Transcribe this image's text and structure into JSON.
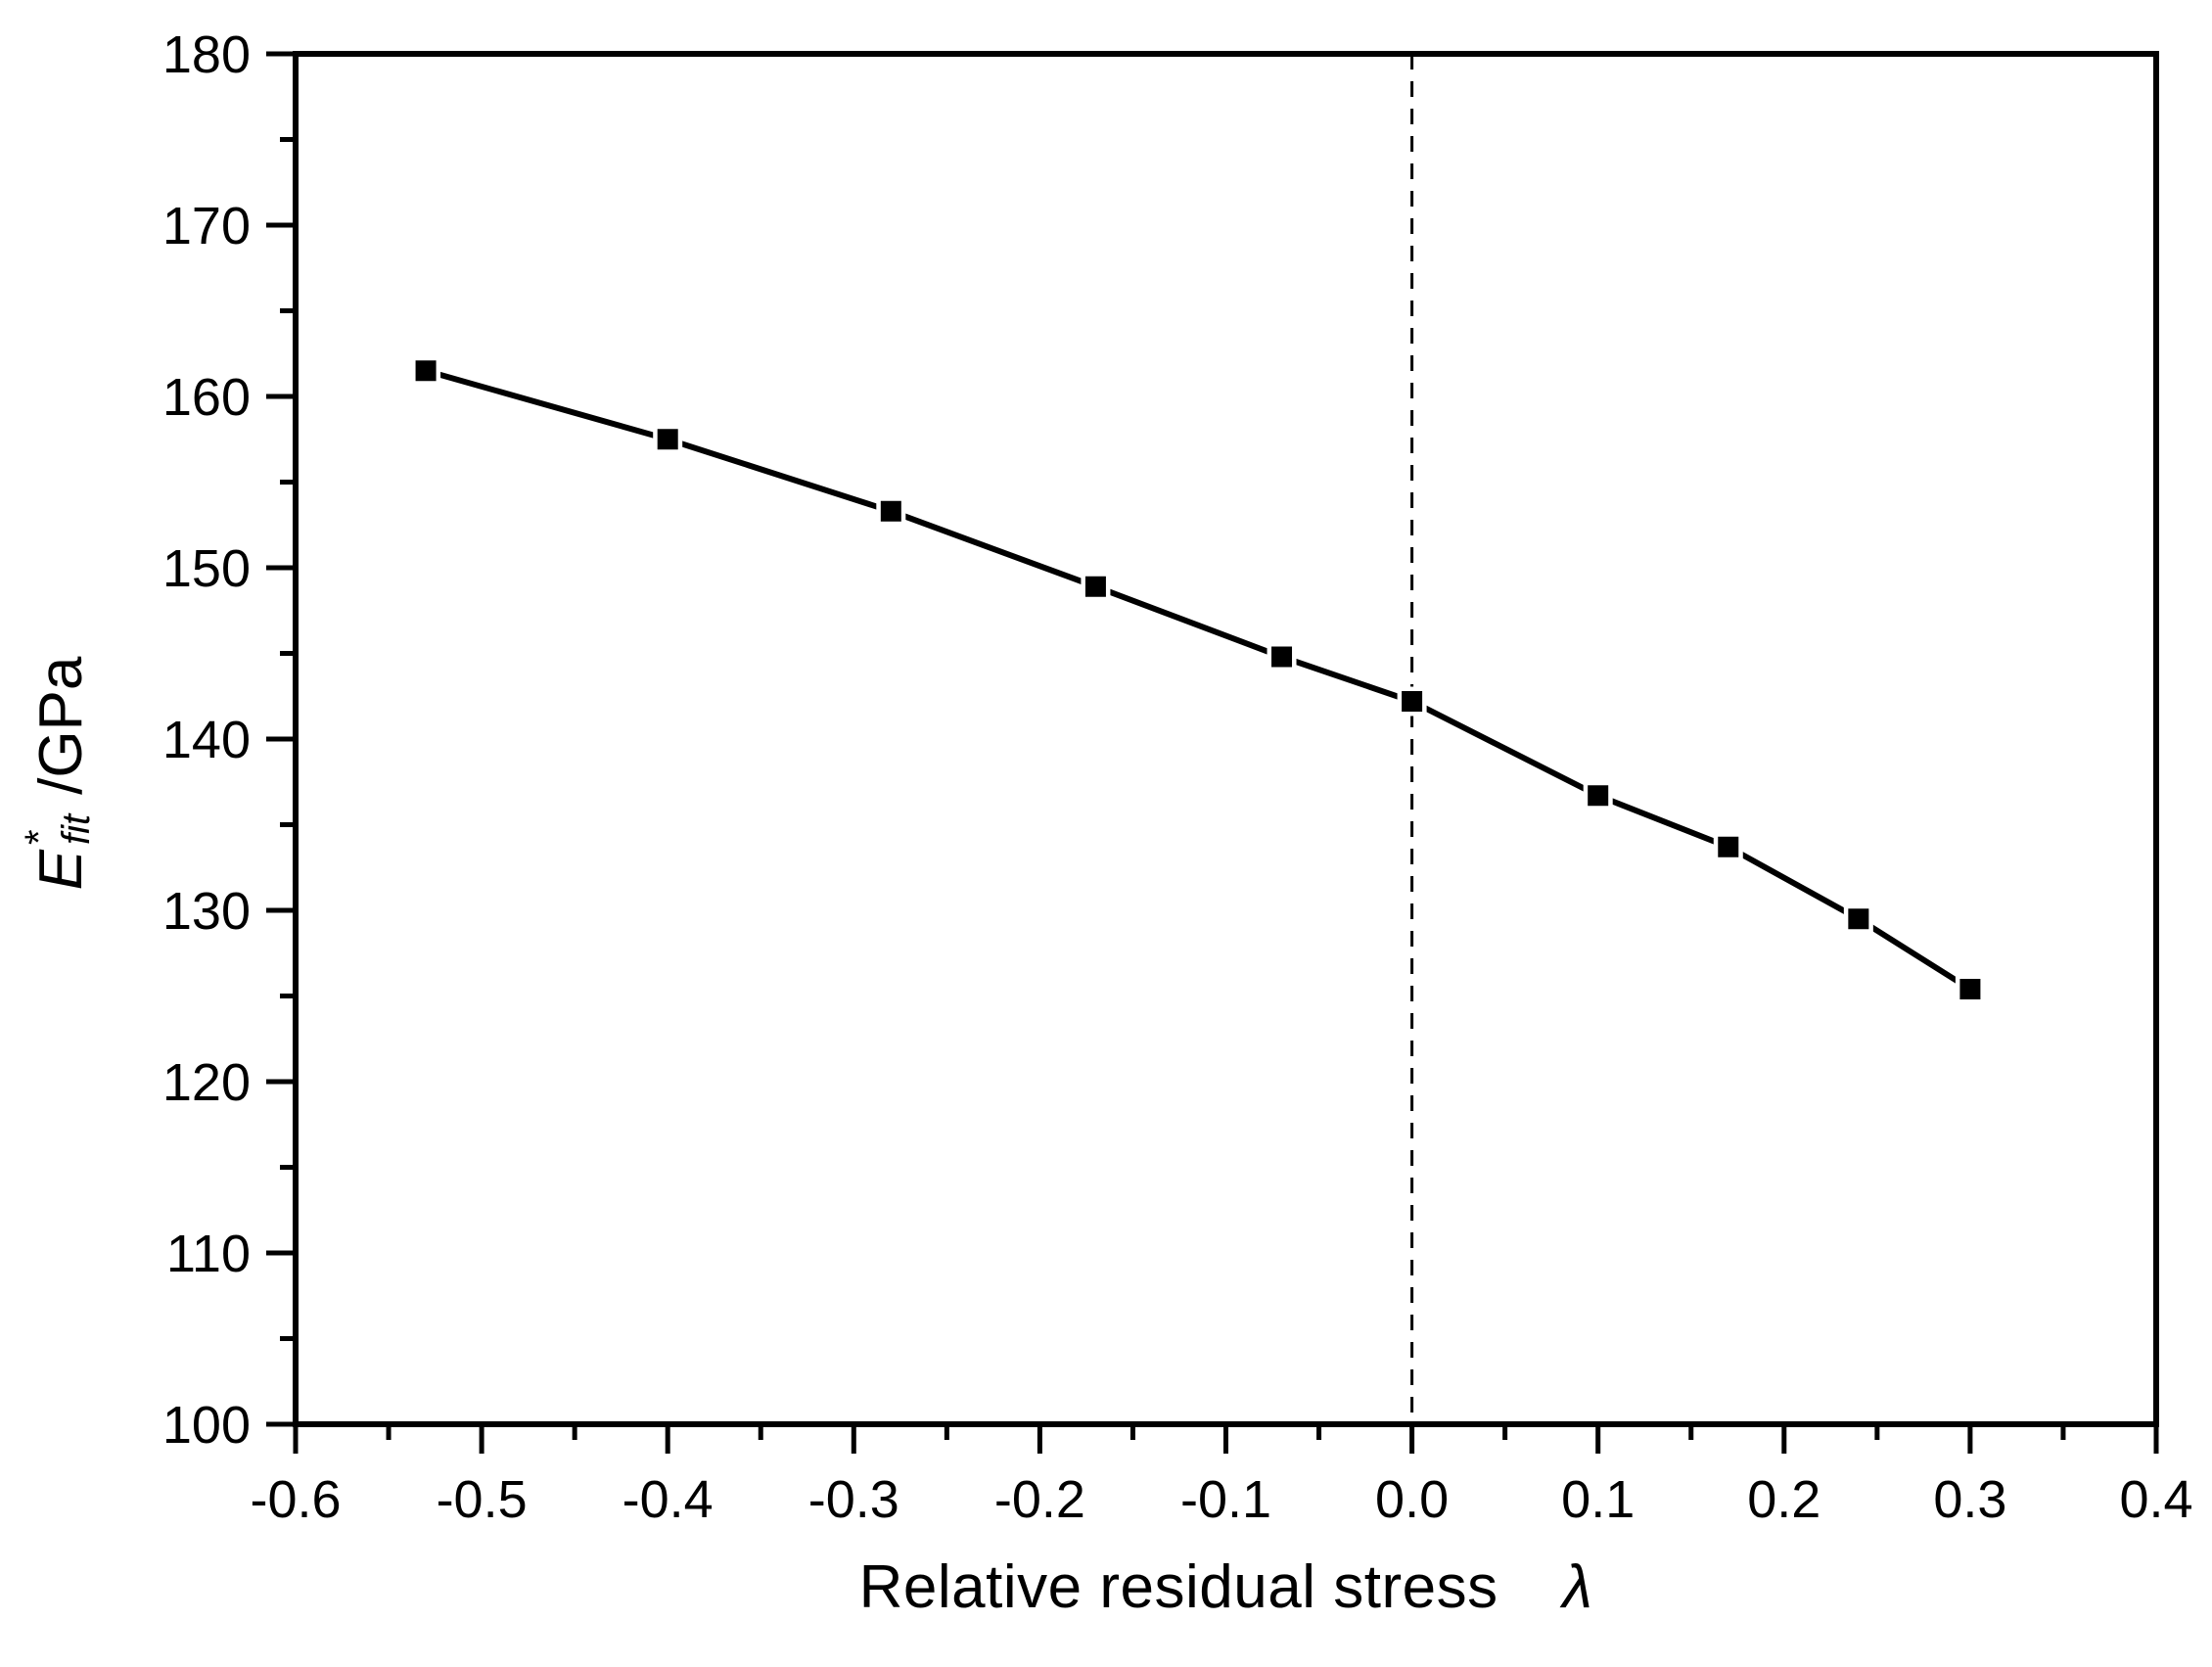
{
  "chart_data": {
    "type": "line",
    "title": "",
    "xlabel": "Relative residual stress",
    "xlabel_symbol": "λ",
    "ylabel": {
      "symbol": "E",
      "superscript": "*",
      "subscript": "fit",
      "unit": "/GPa"
    },
    "x": [
      -0.53,
      -0.4,
      -0.28,
      -0.17,
      -0.07,
      0.0,
      0.1,
      0.17,
      0.24,
      0.3
    ],
    "series": [
      {
        "name": "E*_fit",
        "values": [
          161.5,
          157.5,
          153.3,
          148.9,
          144.8,
          142.2,
          136.7,
          133.7,
          129.5,
          125.4
        ]
      }
    ],
    "xlim": [
      -0.6,
      0.4
    ],
    "ylim": [
      100,
      180
    ],
    "x_major_step": 0.1,
    "x_minor_step": 0.05,
    "y_major_step": 10,
    "y_minor_step": 5,
    "x_tick_labels": [
      "-0.6",
      "-0.5",
      "-0.4",
      "-0.3",
      "-0.2",
      "-0.1",
      "0.0",
      "0.1",
      "0.2",
      "0.3",
      "0.4"
    ],
    "y_tick_labels": [
      "100",
      "110",
      "120",
      "130",
      "140",
      "150",
      "160",
      "170",
      "180"
    ],
    "reference_line_x": 0.0,
    "grid": false,
    "legend": "none",
    "marker": "square",
    "colors": {
      "foreground": "#000000",
      "background": "#ffffff"
    }
  }
}
